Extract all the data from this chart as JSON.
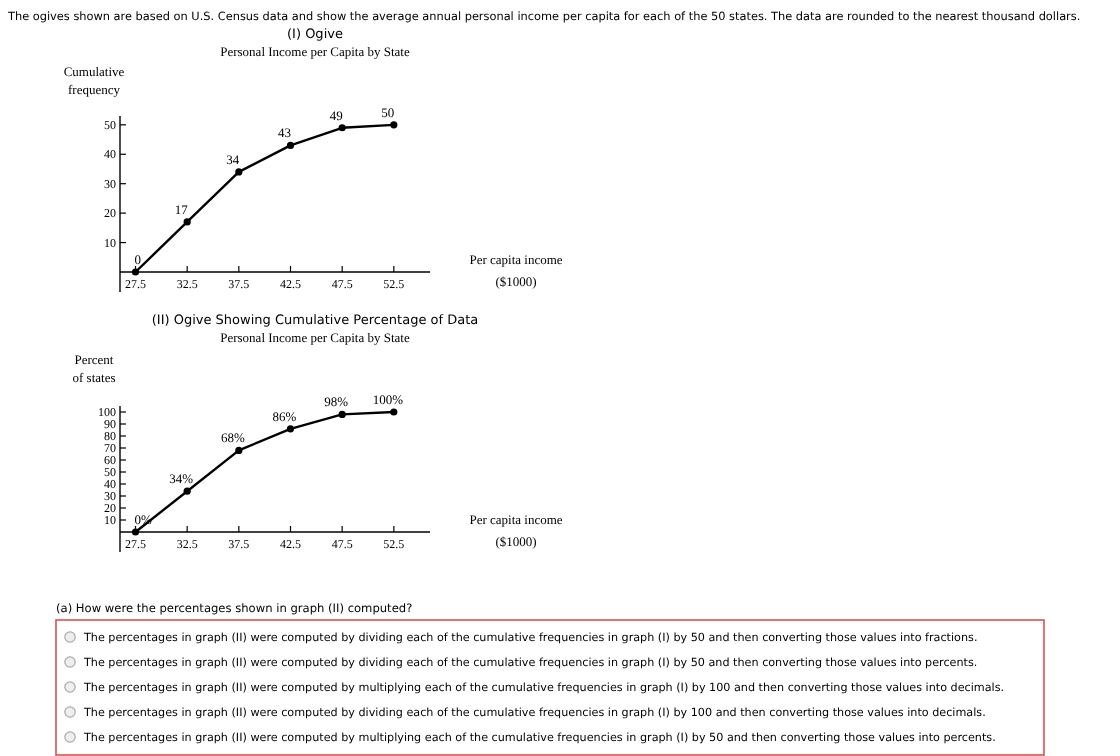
{
  "chart_data": [
    {
      "type": "other",
      "annotations": [
        "The ogives shown are based on U.S. Census data and show the average annual personal income per capita for each of the 50 states. The data are rounded to the nearest thousand dollars."
      ]
    },
    {
      "type": "line",
      "title": "(I) Ogive",
      "subtitle": "Personal Income per Capita by State",
      "xlabel": "Per capita income ($1000)",
      "ylabel": "Cumulative frequency",
      "x": [
        27.5,
        32.5,
        37.5,
        42.5,
        47.5,
        52.5
      ],
      "series": [
        {
          "color": "#000000",
          "values": [
            0,
            17,
            34,
            43,
            49,
            50
          ]
        }
      ],
      "xlim": [
        26,
        56
      ],
      "xticks": [
        27.5,
        32.5,
        37.5,
        42.5,
        47.5,
        52.5
      ],
      "ylim": [
        0,
        53
      ],
      "yticks": [
        10,
        20,
        30,
        40,
        50
      ],
      "marker": "circle",
      "data_labels": true
    },
    {
      "type": "line",
      "title": "(II) Ogive Showing Cumulative Percentage of Data",
      "subtitle": "Personal Income per Capita by State",
      "xlabel": "Per capita income ($1000)",
      "ylabel": "Percent of states",
      "x": [
        27.5,
        32.5,
        37.5,
        42.5,
        47.5,
        52.5
      ],
      "series": [
        {
          "color": "#000000",
          "values": [
            0,
            34,
            68,
            86,
            98,
            100
          ],
          "value_labels": [
            "0%",
            "34%",
            "68%",
            "86%",
            "98%",
            "100%"
          ]
        }
      ],
      "xlim": [
        26,
        56
      ],
      "xticks": [
        27.5,
        32.5,
        37.5,
        42.5,
        47.5,
        52.5
      ],
      "ylim": [
        0,
        105
      ],
      "yticks": [
        10,
        20,
        30,
        40,
        50,
        60,
        70,
        80,
        90,
        100
      ],
      "marker": "circle"
    },
    {
      "type": "other",
      "annotations": [
        "(a) How were the percentages shown in graph (II) computed?",
        "The percentages in graph (II) were computed by dividing each of the cumulative frequencies in graph (I) by 50 and then converting those values into fractions.",
        "The percentages in graph (II) were computed by dividing each of the cumulative frequencies in graph (I) by 50 and then converting those values into percents.",
        "The percentages in graph (II) were computed by multiplying each of the cumulative frequencies in graph (I) by 100 and then converting those values into decimals.",
        "The percentages in graph (II) were computed by dividing each of the cumulative frequencies in graph (I) by 100 and then converting those values into decimals.",
        "The percentages in graph (II) were computed by multiplying each of the cumulative frequencies in graph (I) by 50 and then converting those values into percents."
      ]
    }
  ]
}
